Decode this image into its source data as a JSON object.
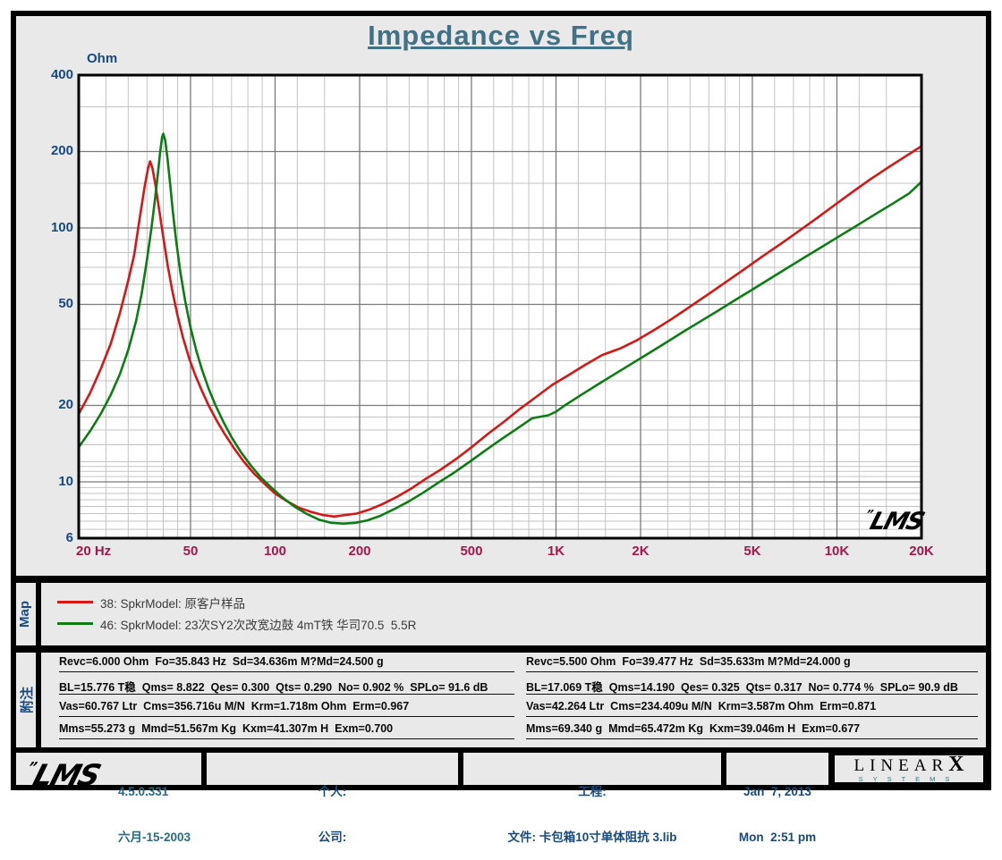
{
  "title": "Impedance vs Freq",
  "colors": {
    "title": "#417184",
    "y_axis_text": "#17497e",
    "x_axis_text": "#a3164e",
    "grid_major": "#7a7a7a",
    "grid_minor": "#c3c3c3",
    "red_curve": "#d41717",
    "green_curve": "#0e7c14",
    "background": "#e9e9e9",
    "plot_background": "#ffffff"
  },
  "chart_data": {
    "type": "line",
    "title": "Impedance vs Freq",
    "ylabel": "Ohm",
    "xlabel": "Hz",
    "x_scale": "log",
    "y_scale": "log",
    "xlim": [
      20,
      20000
    ],
    "ylim": [
      6,
      400
    ],
    "grid": "on",
    "legend_position": "map-strip-below",
    "y_ticks": [
      {
        "label": "400",
        "value": 400
      },
      {
        "label": "200",
        "value": 200
      },
      {
        "label": "100",
        "value": 100
      },
      {
        "label": "50",
        "value": 50
      },
      {
        "label": "20",
        "value": 20
      },
      {
        "label": "10",
        "value": 10
      },
      {
        "label": "6",
        "value": 6
      }
    ],
    "x_ticks": [
      {
        "label": "20 Hz",
        "value": 20,
        "align": "left"
      },
      {
        "label": "50",
        "value": 50
      },
      {
        "label": "100",
        "value": 100
      },
      {
        "label": "200",
        "value": 200
      },
      {
        "label": "500",
        "value": 500
      },
      {
        "label": "1K",
        "value": 1000
      },
      {
        "label": "2K",
        "value": 2000
      },
      {
        "label": "5K",
        "value": 5000
      },
      {
        "label": "10K",
        "value": 10000
      },
      {
        "label": "20K",
        "value": 20000
      }
    ],
    "y_grid_minor": [
      6.5,
      7,
      7.5,
      8,
      8.5,
      9,
      9.5,
      10.5,
      11,
      11.5,
      12,
      14,
      16,
      18,
      25,
      30,
      40,
      60,
      70,
      80,
      90,
      150,
      300
    ],
    "y_grid_major": [
      10,
      20,
      50,
      100,
      200
    ],
    "x_grid_minor": [
      25,
      30,
      35,
      40,
      45,
      60,
      70,
      80,
      90,
      120,
      150,
      250,
      300,
      350,
      400,
      450,
      600,
      700,
      800,
      900,
      1200,
      1500,
      2500,
      3000,
      3500,
      4000,
      4500,
      6000,
      7000,
      8000,
      9000,
      12000,
      15000
    ],
    "x_grid_major": [
      50,
      100,
      200,
      500,
      1000,
      2000,
      5000,
      10000
    ],
    "series": [
      {
        "name": "38: SpkrModel: 原客户样品",
        "color": "#d41717",
        "points": [
          [
            20,
            18.5
          ],
          [
            22,
            22.5
          ],
          [
            24,
            28
          ],
          [
            26,
            35
          ],
          [
            28,
            46
          ],
          [
            30,
            62
          ],
          [
            31.5,
            78
          ],
          [
            33,
            110
          ],
          [
            34.3,
            145
          ],
          [
            35.3,
            172
          ],
          [
            35.9,
            183
          ],
          [
            36.6,
            172
          ],
          [
            37.5,
            148
          ],
          [
            38.5,
            122
          ],
          [
            40,
            92
          ],
          [
            41.5,
            71
          ],
          [
            43,
            57
          ],
          [
            45,
            45
          ],
          [
            47,
            37
          ],
          [
            49.5,
            30.5
          ],
          [
            52,
            26.3
          ],
          [
            55,
            22.7
          ],
          [
            58,
            20
          ],
          [
            62,
            17.4
          ],
          [
            66,
            15.5
          ],
          [
            71,
            13.7
          ],
          [
            77,
            12.1
          ],
          [
            84,
            10.8
          ],
          [
            92,
            9.8
          ],
          [
            100,
            9.0
          ],
          [
            110,
            8.4
          ],
          [
            122,
            7.9
          ],
          [
            135,
            7.6
          ],
          [
            148,
            7.4
          ],
          [
            162,
            7.3
          ],
          [
            178,
            7.4
          ],
          [
            195,
            7.5
          ],
          [
            215,
            7.75
          ],
          [
            240,
            8.15
          ],
          [
            270,
            8.7
          ],
          [
            305,
            9.4
          ],
          [
            345,
            10.3
          ],
          [
            390,
            11.2
          ],
          [
            445,
            12.4
          ],
          [
            505,
            13.8
          ],
          [
            575,
            15.5
          ],
          [
            655,
            17.3
          ],
          [
            745,
            19.4
          ],
          [
            850,
            21.6
          ],
          [
            970,
            24.1
          ],
          [
            1100,
            26.2
          ],
          [
            1270,
            28.9
          ],
          [
            1460,
            31.6
          ],
          [
            1690,
            33.5
          ],
          [
            1950,
            36.2
          ],
          [
            2250,
            39.8
          ],
          [
            2600,
            44
          ],
          [
            3000,
            49
          ],
          [
            3500,
            55
          ],
          [
            4050,
            61.5
          ],
          [
            4700,
            69
          ],
          [
            5450,
            77.5
          ],
          [
            6300,
            86.5
          ],
          [
            7300,
            97
          ],
          [
            8450,
            109
          ],
          [
            9800,
            123
          ],
          [
            11300,
            138
          ],
          [
            13100,
            155
          ],
          [
            15200,
            173
          ],
          [
            17500,
            191
          ],
          [
            20000,
            210
          ]
        ]
      },
      {
        "name": "46: SpkrModel: 23次SY2次改宽边鼓 4mT铁 华司70.5  5.5R",
        "color": "#0e7c14",
        "points": [
          [
            20,
            13.7
          ],
          [
            22,
            15.9
          ],
          [
            24,
            18.6
          ],
          [
            26,
            22
          ],
          [
            28,
            26.5
          ],
          [
            30,
            33
          ],
          [
            32,
            43
          ],
          [
            33.5,
            55
          ],
          [
            35,
            75
          ],
          [
            36.3,
            100
          ],
          [
            37.4,
            131
          ],
          [
            38.3,
            165
          ],
          [
            39,
            200
          ],
          [
            39.6,
            228
          ],
          [
            40,
            235
          ],
          [
            40.6,
            222
          ],
          [
            41.4,
            188
          ],
          [
            42.3,
            150
          ],
          [
            43.3,
            115
          ],
          [
            44.5,
            88
          ],
          [
            46,
            67
          ],
          [
            47.8,
            52
          ],
          [
            50,
            40.5
          ],
          [
            52.5,
            32.7
          ],
          [
            55,
            27.5
          ],
          [
            58,
            23.3
          ],
          [
            61.5,
            19.9
          ],
          [
            65.5,
            17.2
          ],
          [
            70,
            15
          ],
          [
            75.5,
            13.1
          ],
          [
            82,
            11.6
          ],
          [
            89,
            10.4
          ],
          [
            97,
            9.5
          ],
          [
            106,
            8.7
          ],
          [
            117,
            8.0
          ],
          [
            129,
            7.5
          ],
          [
            143,
            7.1
          ],
          [
            158,
            6.9
          ],
          [
            175,
            6.85
          ],
          [
            193,
            6.9
          ],
          [
            213,
            7.05
          ],
          [
            237,
            7.35
          ],
          [
            265,
            7.8
          ],
          [
            298,
            8.35
          ],
          [
            336,
            9.05
          ],
          [
            380,
            9.9
          ],
          [
            430,
            10.8
          ],
          [
            488,
            11.9
          ],
          [
            555,
            13.2
          ],
          [
            632,
            14.6
          ],
          [
            720,
            16.1
          ],
          [
            822,
            17.8
          ],
          [
            940,
            18.3
          ],
          [
            1000,
            18.9
          ],
          [
            1075,
            20
          ],
          [
            1230,
            22
          ],
          [
            1410,
            24.2
          ],
          [
            1620,
            26.6
          ],
          [
            1860,
            29.2
          ],
          [
            2140,
            32.1
          ],
          [
            2460,
            35.3
          ],
          [
            2830,
            38.9
          ],
          [
            3260,
            42.8
          ],
          [
            3760,
            47.1
          ],
          [
            4330,
            51.9
          ],
          [
            5000,
            57.2
          ],
          [
            5760,
            63
          ],
          [
            6640,
            69.4
          ],
          [
            7660,
            76.5
          ],
          [
            8840,
            84.3
          ],
          [
            10200,
            92.8
          ],
          [
            11800,
            102.3
          ],
          [
            13600,
            112.7
          ],
          [
            15700,
            124.2
          ],
          [
            18100,
            137
          ],
          [
            20000,
            152
          ]
        ]
      }
    ],
    "watermark": "LMS"
  },
  "map_panel": {
    "label": "Map",
    "legend": [
      {
        "color": "#d41717",
        "label": "38: SpkrModel: 原客户样品"
      },
      {
        "color": "#0e7c14",
        "label": "46: SpkrModel: 23次SY2次改宽边鼓 4mT铁 华司70.5  5.5R"
      }
    ]
  },
  "notes_panel": {
    "label": "附注",
    "left_lines": [
      "Revc=6.000 Ohm  Fo=35.843 Hz  Sd=34.636m M?Md=24.500 g",
      "BL=15.776 T稳  Qms= 8.822  Qes= 0.300  Qts= 0.290  No= 0.902 %  SPLo= 91.6 dB",
      "Vas=60.767 Ltr  Cms=356.716u M/N  Krm=1.718m Ohm  Erm=0.967",
      "Mms=55.273 g  Mmd=51.567m Kg  Kxm=41.307m H  Exm=0.700"
    ],
    "right_lines": [
      "Revc=5.500 Ohm  Fo=39.477 Hz  Sd=35.633m M?Md=24.000 g",
      "BL=17.069 T稳  Qms=14.190  Qes= 0.325  Qts= 0.317  No= 0.774 %  SPLo= 90.9 dB",
      "Vas=42.264 Ltr  Cms=234.409u M/N  Krm=3.587m Ohm  Erm=0.871",
      "Mms=69.340 g  Mmd=65.472m Kg  Kxm=39.046m H  Exm=0.677"
    ]
  },
  "status_bar": {
    "lms_logo_text": "LMS",
    "lms_logo_quote": "”",
    "version": "4.5.0.331",
    "version_date": "六月-15-2003",
    "personal_label": "个人:",
    "company_label": "公司:",
    "project_label": "工程:",
    "file_label": "文件: 卡包箱10寸单体阻抗 3.lib",
    "date": "Jan  7, 2013",
    "time": "Mon  2:51 pm",
    "brand_name": "LINEAR",
    "brand_x": "X",
    "brand_sub": "SYSTEMS"
  }
}
